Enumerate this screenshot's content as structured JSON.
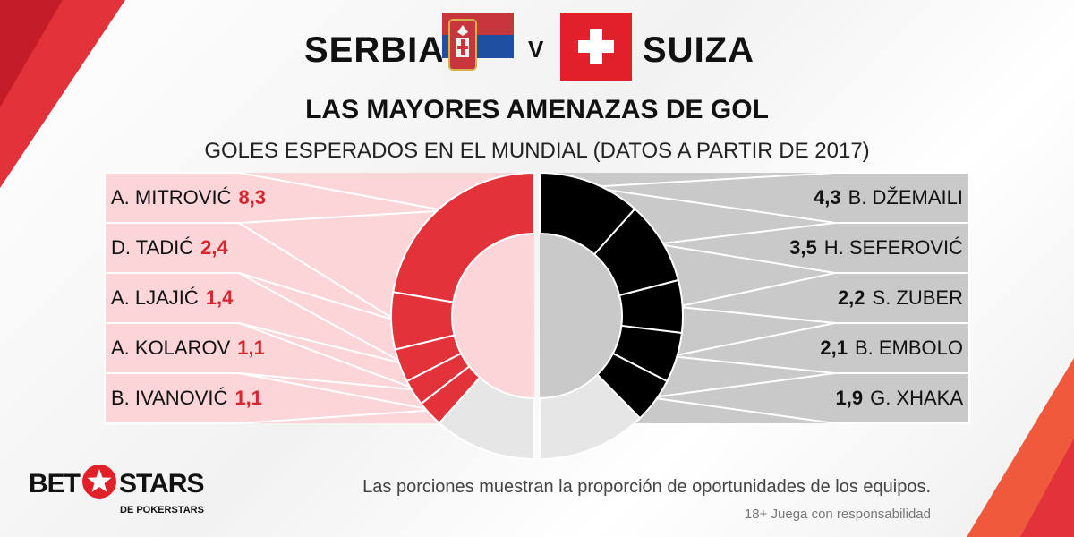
{
  "header": {
    "team_left": "SERBIA",
    "versus": "V",
    "team_right": "SUIZA"
  },
  "chart_data": {
    "type": "donut",
    "title": "LAS MAYORES AMENAZAS DE GOL",
    "subtitle": "GOLES ESPERADOS EN EL MUNDIAL (DATOS A PARTIR DE 2017)",
    "left": {
      "team": "SERBIA",
      "color": "#e2323a",
      "players": [
        {
          "name": "A. MITROVIĆ",
          "value": "8,3",
          "num": 8.3
        },
        {
          "name": "D. TADIĆ",
          "value": "2,4",
          "num": 2.4
        },
        {
          "name": "A. LJAJIĆ",
          "value": "1,4",
          "num": 1.4
        },
        {
          "name": "A. KOLAROV",
          "value": "1,1",
          "num": 1.1
        },
        {
          "name": "B. IVANOVIĆ",
          "value": "1,1",
          "num": 1.1
        }
      ]
    },
    "right": {
      "team": "SUIZA",
      "color": "#000000",
      "players": [
        {
          "name": "B. DŽEMAILI",
          "value": "4,3",
          "num": 4.3
        },
        {
          "name": "H. SEFEROVIĆ",
          "value": "3,5",
          "num": 3.5
        },
        {
          "name": "S. ZUBER",
          "value": "2,2",
          "num": 2.2
        },
        {
          "name": "B. EMBOLO",
          "value": "2,1",
          "num": 2.1
        },
        {
          "name": "G. XHAKA",
          "value": "1,9",
          "num": 1.9
        }
      ]
    },
    "remainder_color": "#e6e6e6"
  },
  "footer": {
    "caption": "Las porciones muestran la proporción de oportunidades de los equipos.",
    "disclaimer": "18+ Juega con responsabilidad"
  },
  "logo": {
    "part1": "BET",
    "part2": "STARS",
    "sub": "DE POKERSTARS"
  }
}
